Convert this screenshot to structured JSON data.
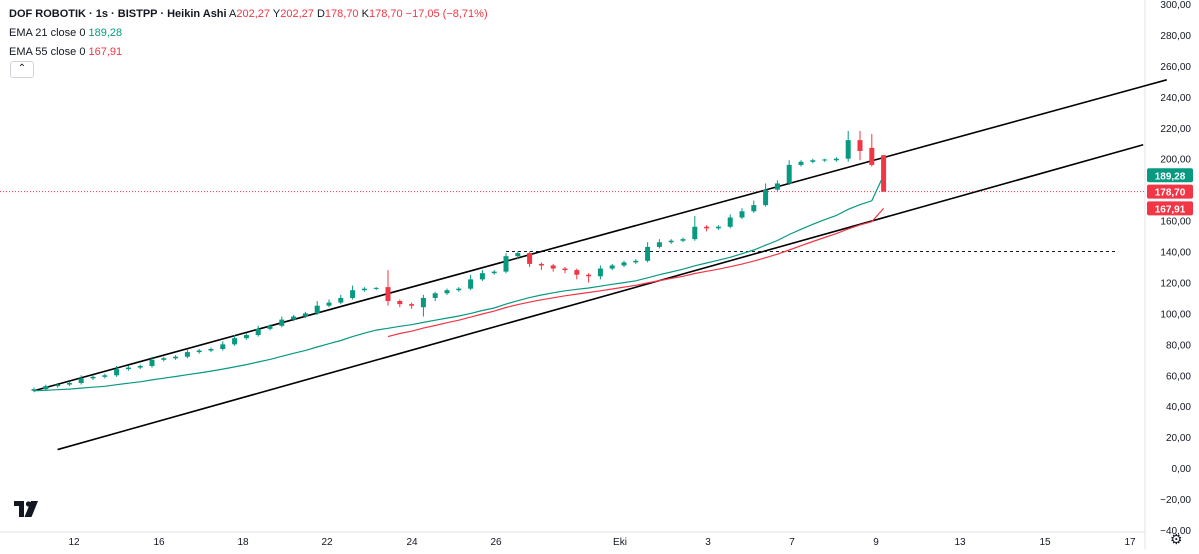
{
  "header": {
    "symbol_line": "DOF ROBOTIK · 1s · BISTPP · Heikin Ashi",
    "ohlc": [
      {
        "key": "A",
        "value": "202,27"
      },
      {
        "key": "Y",
        "value": "202,27"
      },
      {
        "key": "D",
        "value": "178,70"
      },
      {
        "key": "K",
        "value": "178,70"
      }
    ],
    "change": "−17,05 (−8,71%)"
  },
  "indicators": [
    {
      "label": "EMA 21 close 0",
      "value": "189,28",
      "color": "#089981"
    },
    {
      "label": "EMA 55 close 0",
      "value": "167,91",
      "color": "#f23645"
    }
  ],
  "collapse_icon": "chevron-up-icon",
  "price_axis": {
    "ticks": [
      "300,00",
      "280,00",
      "260,00",
      "240,00",
      "220,00",
      "200,00",
      "180,00",
      "160,00",
      "140,00",
      "120,00",
      "100,00",
      "80,00",
      "60,00",
      "40,00",
      "20,00",
      "0,00",
      "−20,00",
      "−40,00"
    ],
    "badges": [
      {
        "value": 189.28,
        "text": "189,28",
        "color": "#089981"
      },
      {
        "value": 178.7,
        "text": "178,70",
        "color": "#f23645"
      },
      {
        "value": 167.91,
        "text": "167,91",
        "color": "#f23645"
      }
    ]
  },
  "time_axis": {
    "labels": [
      "12",
      "16",
      "18",
      "22",
      "24",
      "26",
      "Eki",
      "3",
      "7",
      "9",
      "13",
      "15",
      "17"
    ]
  },
  "chart_data": {
    "type": "candlestick",
    "title": "DOF ROBOTIK · 1s · BISTPP · Heikin Ashi",
    "ylim": [
      -40,
      300
    ],
    "x_labels": [
      "12",
      "16",
      "18",
      "22",
      "24",
      "26",
      "Eki",
      "3",
      "7",
      "9",
      "13",
      "15",
      "17"
    ],
    "last_price": 178.7,
    "candles": [
      {
        "o": 50,
        "c": 51,
        "h": 52,
        "l": 49
      },
      {
        "o": 51,
        "c": 53,
        "h": 54,
        "l": 50
      },
      {
        "o": 53,
        "c": 54,
        "h": 55,
        "l": 52
      },
      {
        "o": 54,
        "c": 55,
        "h": 56,
        "l": 53
      },
      {
        "o": 55,
        "c": 58,
        "h": 60,
        "l": 54
      },
      {
        "o": 58,
        "c": 59,
        "h": 60,
        "l": 57
      },
      {
        "o": 59,
        "c": 60,
        "h": 61,
        "l": 58
      },
      {
        "o": 60,
        "c": 64,
        "h": 66,
        "l": 59
      },
      {
        "o": 64,
        "c": 65,
        "h": 66,
        "l": 63
      },
      {
        "o": 65,
        "c": 66,
        "h": 67,
        "l": 64
      },
      {
        "o": 66,
        "c": 70,
        "h": 72,
        "l": 65
      },
      {
        "o": 70,
        "c": 71,
        "h": 72,
        "l": 69
      },
      {
        "o": 71,
        "c": 72,
        "h": 73,
        "l": 70
      },
      {
        "o": 72,
        "c": 75,
        "h": 77,
        "l": 71
      },
      {
        "o": 75,
        "c": 76,
        "h": 77,
        "l": 74
      },
      {
        "o": 76,
        "c": 77,
        "h": 78,
        "l": 75
      },
      {
        "o": 77,
        "c": 80,
        "h": 82,
        "l": 76
      },
      {
        "o": 80,
        "c": 84,
        "h": 86,
        "l": 79
      },
      {
        "o": 84,
        "c": 86,
        "h": 87,
        "l": 83
      },
      {
        "o": 86,
        "c": 90,
        "h": 92,
        "l": 85
      },
      {
        "o": 90,
        "c": 92,
        "h": 93,
        "l": 89
      },
      {
        "o": 92,
        "c": 96,
        "h": 98,
        "l": 91
      },
      {
        "o": 96,
        "c": 98,
        "h": 99,
        "l": 95
      },
      {
        "o": 98,
        "c": 100,
        "h": 101,
        "l": 97
      },
      {
        "o": 100,
        "c": 105,
        "h": 108,
        "l": 99
      },
      {
        "o": 105,
        "c": 107,
        "h": 109,
        "l": 104
      },
      {
        "o": 107,
        "c": 110,
        "h": 112,
        "l": 106
      },
      {
        "o": 110,
        "c": 115,
        "h": 118,
        "l": 109
      },
      {
        "o": 115,
        "c": 116,
        "h": 117,
        "l": 114
      },
      {
        "o": 116,
        "c": 116.5,
        "h": 117,
        "l": 115
      },
      {
        "o": 117,
        "c": 108,
        "h": 128,
        "l": 105
      },
      {
        "o": 108,
        "c": 106,
        "h": 109,
        "l": 104
      },
      {
        "o": 106,
        "c": 105,
        "h": 107,
        "l": 103
      },
      {
        "o": 104,
        "c": 110,
        "h": 112,
        "l": 98
      },
      {
        "o": 110,
        "c": 113,
        "h": 114,
        "l": 108
      },
      {
        "o": 113,
        "c": 115,
        "h": 116,
        "l": 112
      },
      {
        "o": 115,
        "c": 116,
        "h": 117,
        "l": 114
      },
      {
        "o": 116,
        "c": 122,
        "h": 125,
        "l": 115
      },
      {
        "o": 122,
        "c": 126,
        "h": 128,
        "l": 121
      },
      {
        "o": 126,
        "c": 127,
        "h": 128,
        "l": 125
      },
      {
        "o": 127,
        "c": 137,
        "h": 139,
        "l": 126
      },
      {
        "o": 137,
        "c": 139,
        "h": 140,
        "l": 135
      },
      {
        "o": 139,
        "c": 132,
        "h": 140,
        "l": 130
      },
      {
        "o": 132,
        "c": 131,
        "h": 133,
        "l": 128
      },
      {
        "o": 131,
        "c": 129,
        "h": 132,
        "l": 127
      },
      {
        "o": 129,
        "c": 128,
        "h": 130,
        "l": 126
      },
      {
        "o": 128,
        "c": 125,
        "h": 129,
        "l": 122
      },
      {
        "o": 125,
        "c": 124,
        "h": 126,
        "l": 120
      },
      {
        "o": 124,
        "c": 129,
        "h": 131,
        "l": 122
      },
      {
        "o": 129,
        "c": 131,
        "h": 132,
        "l": 128
      },
      {
        "o": 131,
        "c": 133,
        "h": 134,
        "l": 130
      },
      {
        "o": 133,
        "c": 134,
        "h": 135,
        "l": 132
      },
      {
        "o": 134,
        "c": 143,
        "h": 146,
        "l": 133
      },
      {
        "o": 143,
        "c": 146,
        "h": 148,
        "l": 142
      },
      {
        "o": 146,
        "c": 147,
        "h": 148,
        "l": 145
      },
      {
        "o": 147,
        "c": 148,
        "h": 149,
        "l": 146
      },
      {
        "o": 148,
        "c": 156,
        "h": 163,
        "l": 147
      },
      {
        "o": 156,
        "c": 155,
        "h": 157,
        "l": 153
      },
      {
        "o": 155,
        "c": 156,
        "h": 157,
        "l": 154
      },
      {
        "o": 156,
        "c": 162,
        "h": 164,
        "l": 155
      },
      {
        "o": 162,
        "c": 166,
        "h": 168,
        "l": 161
      },
      {
        "o": 166,
        "c": 170,
        "h": 173,
        "l": 165
      },
      {
        "o": 170,
        "c": 180,
        "h": 184,
        "l": 169
      },
      {
        "o": 180,
        "c": 184,
        "h": 186,
        "l": 179
      },
      {
        "o": 184,
        "c": 196,
        "h": 199,
        "l": 183
      },
      {
        "o": 196,
        "c": 198,
        "h": 199,
        "l": 195
      },
      {
        "o": 198,
        "c": 199,
        "h": 200,
        "l": 197
      },
      {
        "o": 199,
        "c": 199.5,
        "h": 200,
        "l": 198
      },
      {
        "o": 199,
        "c": 200,
        "h": 201,
        "l": 198
      },
      {
        "o": 200,
        "c": 212,
        "h": 218,
        "l": 198
      },
      {
        "o": 212,
        "c": 205,
        "h": 218,
        "l": 199
      },
      {
        "o": 207,
        "c": 196,
        "h": 216,
        "l": 195
      },
      {
        "o": 202.27,
        "c": 178.7,
        "h": 202.27,
        "l": 178.7
      }
    ],
    "series": [
      {
        "name": "EMA 21 close 0",
        "color": "#089981",
        "values": [
          50,
          50.3,
          50.7,
          51.1,
          51.7,
          52.3,
          52.9,
          53.9,
          54.9,
          55.8,
          57,
          58.1,
          59.2,
          60.4,
          61.5,
          62.7,
          64,
          65.4,
          66.9,
          68.6,
          70.3,
          72.3,
          74.2,
          76.1,
          78.3,
          80.4,
          82.5,
          85,
          87.2,
          89.2,
          90.4,
          91.7,
          92.7,
          94.2,
          95.6,
          97,
          98.3,
          100,
          101.9,
          103.5,
          106,
          108.2,
          110.2,
          111.9,
          113.3,
          114.6,
          115.6,
          116.4,
          117.6,
          118.8,
          119.9,
          121.1,
          123,
          125,
          126.8,
          128.6,
          130.8,
          132.6,
          134.4,
          136.3,
          138.6,
          141,
          144.1,
          147.1,
          151,
          154.4,
          157.6,
          160.6,
          163.3,
          167.3,
          170.3,
          172.8,
          189.28
        ]
      },
      {
        "name": "EMA 55 close 0",
        "color": "#f23645",
        "values": [
          null,
          null,
          null,
          null,
          null,
          null,
          null,
          null,
          null,
          null,
          null,
          null,
          null,
          null,
          null,
          null,
          null,
          null,
          null,
          null,
          null,
          null,
          null,
          null,
          null,
          null,
          null,
          null,
          null,
          null,
          85,
          87,
          88.5,
          90.5,
          92.2,
          94,
          95.6,
          97.6,
          99.6,
          101.5,
          103.8,
          105.7,
          107.3,
          108.8,
          110.1,
          111.4,
          112.5,
          113.5,
          114.6,
          115.8,
          117,
          118.2,
          119.7,
          121.2,
          122.6,
          124,
          125.8,
          127.2,
          128.6,
          130.2,
          131.9,
          133.8,
          136,
          138.3,
          141,
          143.8,
          146.5,
          149.1,
          151.6,
          154.6,
          157.2,
          159.3,
          167.91
        ]
      }
    ],
    "trend_lines": [
      {
        "from": [
          0,
          50
        ],
        "to": [
          96,
          251
        ],
        "color": "#000000"
      },
      {
        "from": [
          2,
          12
        ],
        "to": [
          94,
          209
        ],
        "color": "#000000"
      }
    ],
    "horizontal_levels": [
      {
        "value": 140,
        "style": "dashed",
        "from_index": 40
      }
    ]
  }
}
